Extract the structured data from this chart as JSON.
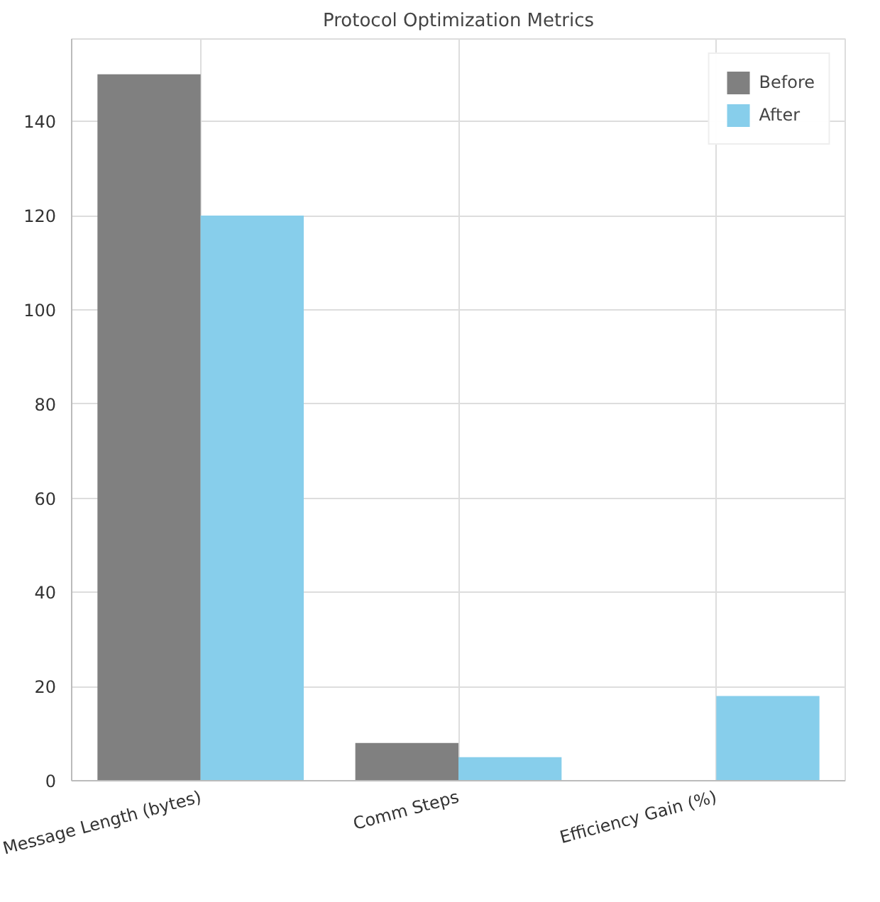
{
  "chart_data": {
    "type": "bar",
    "title": "Protocol Optimization Metrics",
    "categories": [
      "Message Length (bytes)",
      "Comm Steps",
      "Efficiency Gain (%)"
    ],
    "series": [
      {
        "name": "Before",
        "color": "#808080",
        "values": [
          150,
          8,
          0
        ]
      },
      {
        "name": "After",
        "color": "#87ceeb",
        "values": [
          120,
          5,
          18
        ]
      }
    ],
    "ylim": [
      0,
      157.5
    ],
    "yticks": [
      0,
      20,
      40,
      60,
      80,
      100,
      120,
      140
    ],
    "grid": true,
    "legend": "top right"
  }
}
